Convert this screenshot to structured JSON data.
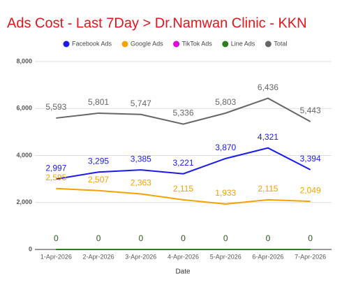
{
  "chart_data": {
    "type": "line",
    "title": "Ads Cost - Last 7Day > Dr.Namwan Clinic - KKN",
    "x_label": "Date",
    "categories": [
      "1-Apr-2026",
      "2-Apr-2026",
      "3-Apr-2026",
      "4-Apr-2026",
      "5-Apr-2026",
      "6-Apr-2026",
      "7-Apr-2026"
    ],
    "series": [
      {
        "name": "Facebook Ads",
        "color": "#1a1aee",
        "values": [
          2997,
          3295,
          3385,
          3221,
          3870,
          4321,
          3394
        ],
        "value_labels": [
          "2,997",
          "3,295",
          "3,385",
          "3,221",
          "3,870",
          "4,321",
          "3,394"
        ]
      },
      {
        "name": "Google Ads",
        "color": "#f4a300",
        "values": [
          2595,
          2507,
          2363,
          2115,
          1933,
          2115,
          2049
        ],
        "value_labels": [
          "2,595",
          "2,507",
          "2,363",
          "2,115",
          "1,933",
          "2,115",
          "2,049"
        ]
      },
      {
        "name": "TikTok Ads",
        "color": "#e000e0",
        "values": [
          0,
          0,
          0,
          0,
          0,
          0,
          0
        ]
      },
      {
        "name": "Line Ads",
        "color": "#2e7d1e",
        "values": [
          0,
          0,
          0,
          0,
          0,
          0,
          0
        ]
      },
      {
        "name": "Total",
        "color": "#666666",
        "values": [
          5593,
          5801,
          5747,
          5336,
          5803,
          6436,
          5443
        ],
        "value_labels": [
          "5,593",
          "5,801",
          "5,747",
          "5,336",
          "5,803",
          "6,436",
          "5,443"
        ]
      }
    ],
    "ylim": [
      0,
      8000
    ],
    "yticks": [
      0,
      {
        "value": 2000,
        "label": "2,000"
      },
      {
        "value": 4000,
        "label": "4,000"
      },
      {
        "value": 6000,
        "label": "6,000"
      },
      {
        "value": 8000,
        "label": "8,000"
      }
    ],
    "grid": true,
    "legend": "top"
  }
}
